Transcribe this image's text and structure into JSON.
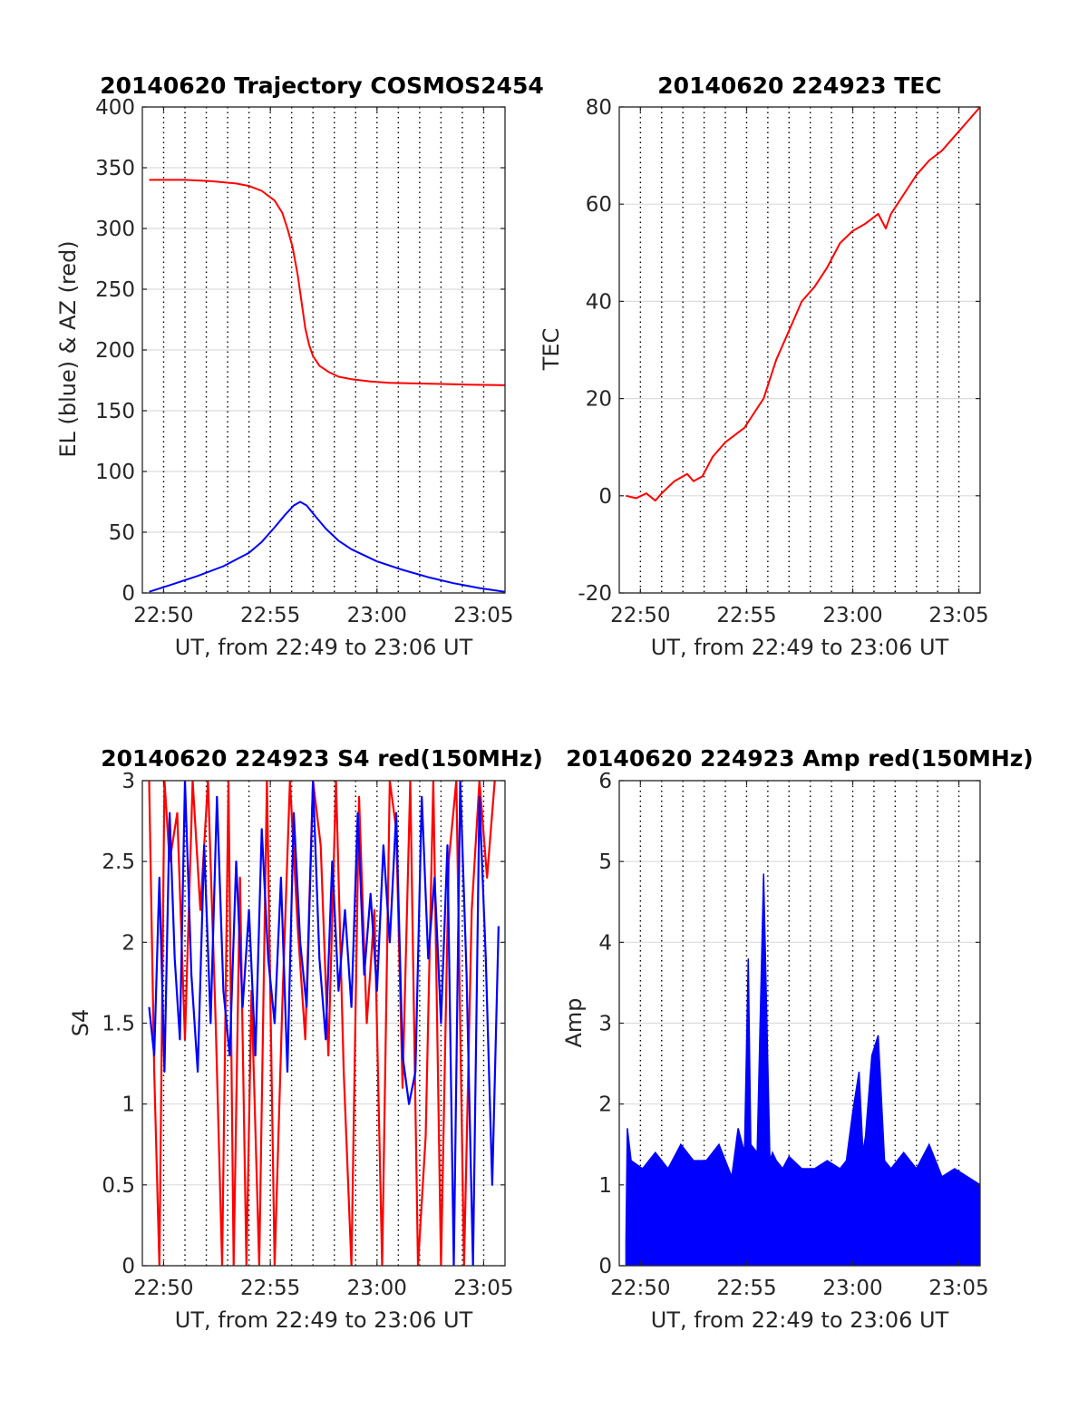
{
  "chart_data": [
    {
      "type": "line",
      "title": "20140620 Trajectory COSMOS2454",
      "xlabel": "UT, from 22:49 to 23:06 UT",
      "ylabel": "EL (blue) & AZ (red)",
      "xlim": [
        22.8167,
        23.1
      ],
      "ylim": [
        0,
        400
      ],
      "xticks": [
        22.8333,
        22.9167,
        23.0,
        23.0833
      ],
      "xticklabels": [
        "22:50",
        "22:55",
        "23:00",
        "23:05"
      ],
      "yticks": [
        0,
        50,
        100,
        150,
        200,
        250,
        300,
        350,
        400
      ],
      "yticklabels": [
        "0",
        "50",
        "100",
        "150",
        "200",
        "250",
        "300",
        "350",
        "400"
      ],
      "grid": true,
      "series": [
        {
          "color": "#ff0000",
          "x": [
            22.822,
            22.85,
            22.87,
            22.89,
            22.9,
            22.91,
            22.92,
            22.926,
            22.93,
            22.934,
            22.938,
            22.941,
            22.944,
            22.947,
            22.95,
            22.955,
            22.962,
            22.97,
            22.98,
            22.995,
            23.01,
            23.03,
            23.05,
            23.07,
            23.1
          ],
          "y": [
            340,
            340,
            339,
            337,
            335,
            331,
            323,
            313,
            300,
            285,
            262,
            240,
            218,
            204,
            195,
            187,
            182,
            178,
            176,
            174,
            173,
            172.5,
            172,
            171.5,
            171
          ]
        },
        {
          "color": "#0000ff",
          "x": [
            22.822,
            22.84,
            22.86,
            22.88,
            22.9,
            22.91,
            22.92,
            22.928,
            22.935,
            22.94,
            22.945,
            22.952,
            22.96,
            22.97,
            22.98,
            23.0,
            23.02,
            23.04,
            23.06,
            23.08,
            23.1
          ],
          "y": [
            1,
            7,
            14,
            22,
            33,
            42,
            54,
            64,
            72,
            75,
            72,
            63,
            53,
            43,
            36,
            26,
            19,
            13,
            8,
            4,
            1
          ]
        }
      ]
    },
    {
      "type": "line",
      "title": "20140620 224923 TEC",
      "xlabel": "UT, from 22:49 to 23:06 UT",
      "ylabel": "TEC",
      "xlim": [
        22.8167,
        23.1
      ],
      "ylim": [
        -20,
        80
      ],
      "xticks": [
        22.8333,
        22.9167,
        23.0,
        23.0833
      ],
      "xticklabels": [
        "22:50",
        "22:55",
        "23:00",
        "23:05"
      ],
      "yticks": [
        -20,
        0,
        20,
        40,
        60,
        80
      ],
      "yticklabels": [
        "-20",
        "0",
        "20",
        "40",
        "60",
        "80"
      ],
      "grid": true,
      "series": [
        {
          "color": "#ff0000",
          "x": [
            22.822,
            22.83,
            22.838,
            22.845,
            22.85,
            22.86,
            22.87,
            22.875,
            22.882,
            22.89,
            22.9,
            22.91,
            22.915,
            22.92,
            22.93,
            22.94,
            22.95,
            22.96,
            22.97,
            22.98,
            22.99,
            23.0,
            23.01,
            23.02,
            23.026,
            23.03,
            23.04,
            23.05,
            23.06,
            23.07,
            23.08,
            23.09,
            23.1
          ],
          "y": [
            0,
            -0.5,
            0.5,
            -1,
            0.5,
            3,
            4.5,
            3,
            4,
            8,
            11,
            13,
            14,
            16,
            20,
            28,
            34,
            40,
            43,
            47,
            52,
            54.5,
            56,
            58,
            55,
            58,
            62,
            66,
            69,
            71,
            74,
            77,
            80
          ]
        }
      ]
    },
    {
      "type": "line",
      "title": "20140620 224923 S4 red(150MHz)",
      "xlabel": "UT, from 22:49 to 23:06 UT",
      "ylabel": "S4",
      "xlim": [
        22.8167,
        23.1
      ],
      "ylim": [
        0,
        3
      ],
      "xticks": [
        22.8333,
        22.9167,
        23.0,
        23.0833
      ],
      "xticklabels": [
        "22:50",
        "22:55",
        "23:00",
        "23:05"
      ],
      "yticks": [
        0,
        0.5,
        1,
        1.5,
        2,
        2.5,
        3
      ],
      "yticklabels": [
        "0",
        "0.5",
        "1",
        "1.5",
        "2",
        "2.5",
        "3"
      ],
      "grid": true,
      "series": [
        {
          "color": "#ff0000",
          "x": [
            22.822,
            22.826,
            22.83,
            22.834,
            22.838,
            22.844,
            22.85,
            22.856,
            22.862,
            22.868,
            22.874,
            22.879,
            22.884,
            22.888,
            22.893,
            22.898,
            22.902,
            22.908,
            22.914,
            22.92,
            22.926,
            22.932,
            22.938,
            22.944,
            22.95,
            22.956,
            22.962,
            22.968,
            22.974,
            22.98,
            22.986,
            22.992,
            22.998,
            23.004,
            23.01,
            23.015,
            23.02,
            23.026,
            23.032,
            23.038,
            23.044,
            23.05,
            23.056,
            23.062,
            23.068,
            23.074,
            23.08,
            23.086,
            23.092
          ],
          "y": [
            3,
            1.2,
            0,
            3,
            2.5,
            2.8,
            1.4,
            3,
            2.2,
            3,
            1.5,
            0,
            3,
            0,
            2.4,
            0,
            1.7,
            0,
            3,
            0,
            1.6,
            3,
            2.1,
            1.4,
            3,
            2.6,
            1.3,
            3,
            1.2,
            0,
            2.9,
            1.5,
            2.2,
            0,
            3,
            2.7,
            1.1,
            3,
            0,
            0.8,
            3,
            0,
            2.5,
            3,
            0,
            2.2,
            3,
            2.4,
            3
          ]
        },
        {
          "color": "#0000ff",
          "x": [
            22.822,
            22.826,
            22.83,
            22.834,
            22.838,
            22.842,
            22.846,
            22.85,
            22.855,
            22.86,
            22.865,
            22.87,
            22.875,
            22.88,
            22.885,
            22.89,
            22.895,
            22.9,
            22.905,
            22.91,
            22.915,
            22.92,
            22.925,
            22.93,
            22.935,
            22.94,
            22.945,
            22.95,
            22.955,
            22.96,
            22.965,
            22.97,
            22.975,
            22.98,
            22.985,
            22.99,
            22.995,
            23.0,
            23.005,
            23.01,
            23.015,
            23.02,
            23.025,
            23.03,
            23.035,
            23.04,
            23.045,
            23.05,
            23.055,
            23.06,
            23.065,
            23.07,
            23.075,
            23.08,
            23.085,
            23.09,
            23.095
          ],
          "y": [
            1.6,
            1.3,
            2.4,
            1.2,
            2.8,
            1.9,
            1.4,
            3,
            1.8,
            1.2,
            2.6,
            1.5,
            2.9,
            1.7,
            1.3,
            2.5,
            1.6,
            2.2,
            1.3,
            2.7,
            1.9,
            1.5,
            2.4,
            1.2,
            2.8,
            2,
            1.6,
            3,
            1.9,
            1.4,
            2.5,
            1.7,
            2.2,
            1.6,
            2.8,
            1.8,
            2.3,
            1.7,
            2.6,
            2,
            2.8,
            1.3,
            1.0,
            1.2,
            2.9,
            1.9,
            2.4,
            1.5,
            2.6,
            0,
            3,
            1.8,
            0,
            2.9,
            1.9,
            0.5,
            2.1
          ]
        }
      ]
    },
    {
      "type": "line",
      "title": "20140620 224923 Amp red(150MHz)",
      "xlabel": "UT, from 22:49 to 23:06 UT",
      "ylabel": "Amp",
      "xlim": [
        22.8167,
        23.1
      ],
      "ylim": [
        0,
        6
      ],
      "xticks": [
        22.8333,
        22.9167,
        23.0,
        23.0833
      ],
      "xticklabels": [
        "22:50",
        "22:55",
        "23:00",
        "23:05"
      ],
      "yticks": [
        0,
        1,
        2,
        3,
        4,
        5,
        6
      ],
      "yticklabels": [
        "0",
        "1",
        "2",
        "3",
        "4",
        "5",
        "6"
      ],
      "grid": true,
      "series": [
        {
          "color": "#0000ff",
          "note_envelope": "upper envelope of dense noisy trace",
          "x": [
            22.822,
            22.823,
            22.826,
            22.835,
            22.845,
            22.855,
            22.865,
            22.875,
            22.885,
            22.895,
            22.905,
            22.91,
            22.915,
            22.918,
            22.92,
            22.925,
            22.93,
            22.935,
            22.937,
            22.94,
            22.945,
            22.95,
            22.96,
            22.97,
            22.98,
            22.99,
            22.995,
            23.0,
            23.005,
            23.008,
            23.01,
            23.015,
            23.02,
            23.025,
            23.03,
            23.04,
            23.05,
            23.06,
            23.07,
            23.08,
            23.09,
            23.1
          ],
          "y": [
            0.3,
            1.7,
            1.3,
            1.2,
            1.4,
            1.2,
            1.5,
            1.3,
            1.3,
            1.5,
            1.1,
            1.7,
            1.4,
            3.8,
            1.5,
            1.4,
            4.85,
            1.3,
            1.4,
            1.3,
            1.2,
            1.35,
            1.2,
            1.2,
            1.3,
            1.2,
            1.3,
            1.9,
            2.4,
            1.4,
            1.6,
            2.6,
            2.85,
            1.3,
            1.2,
            1.4,
            1.2,
            1.5,
            1.1,
            1.2,
            1.1,
            1.0
          ]
        }
      ]
    }
  ]
}
